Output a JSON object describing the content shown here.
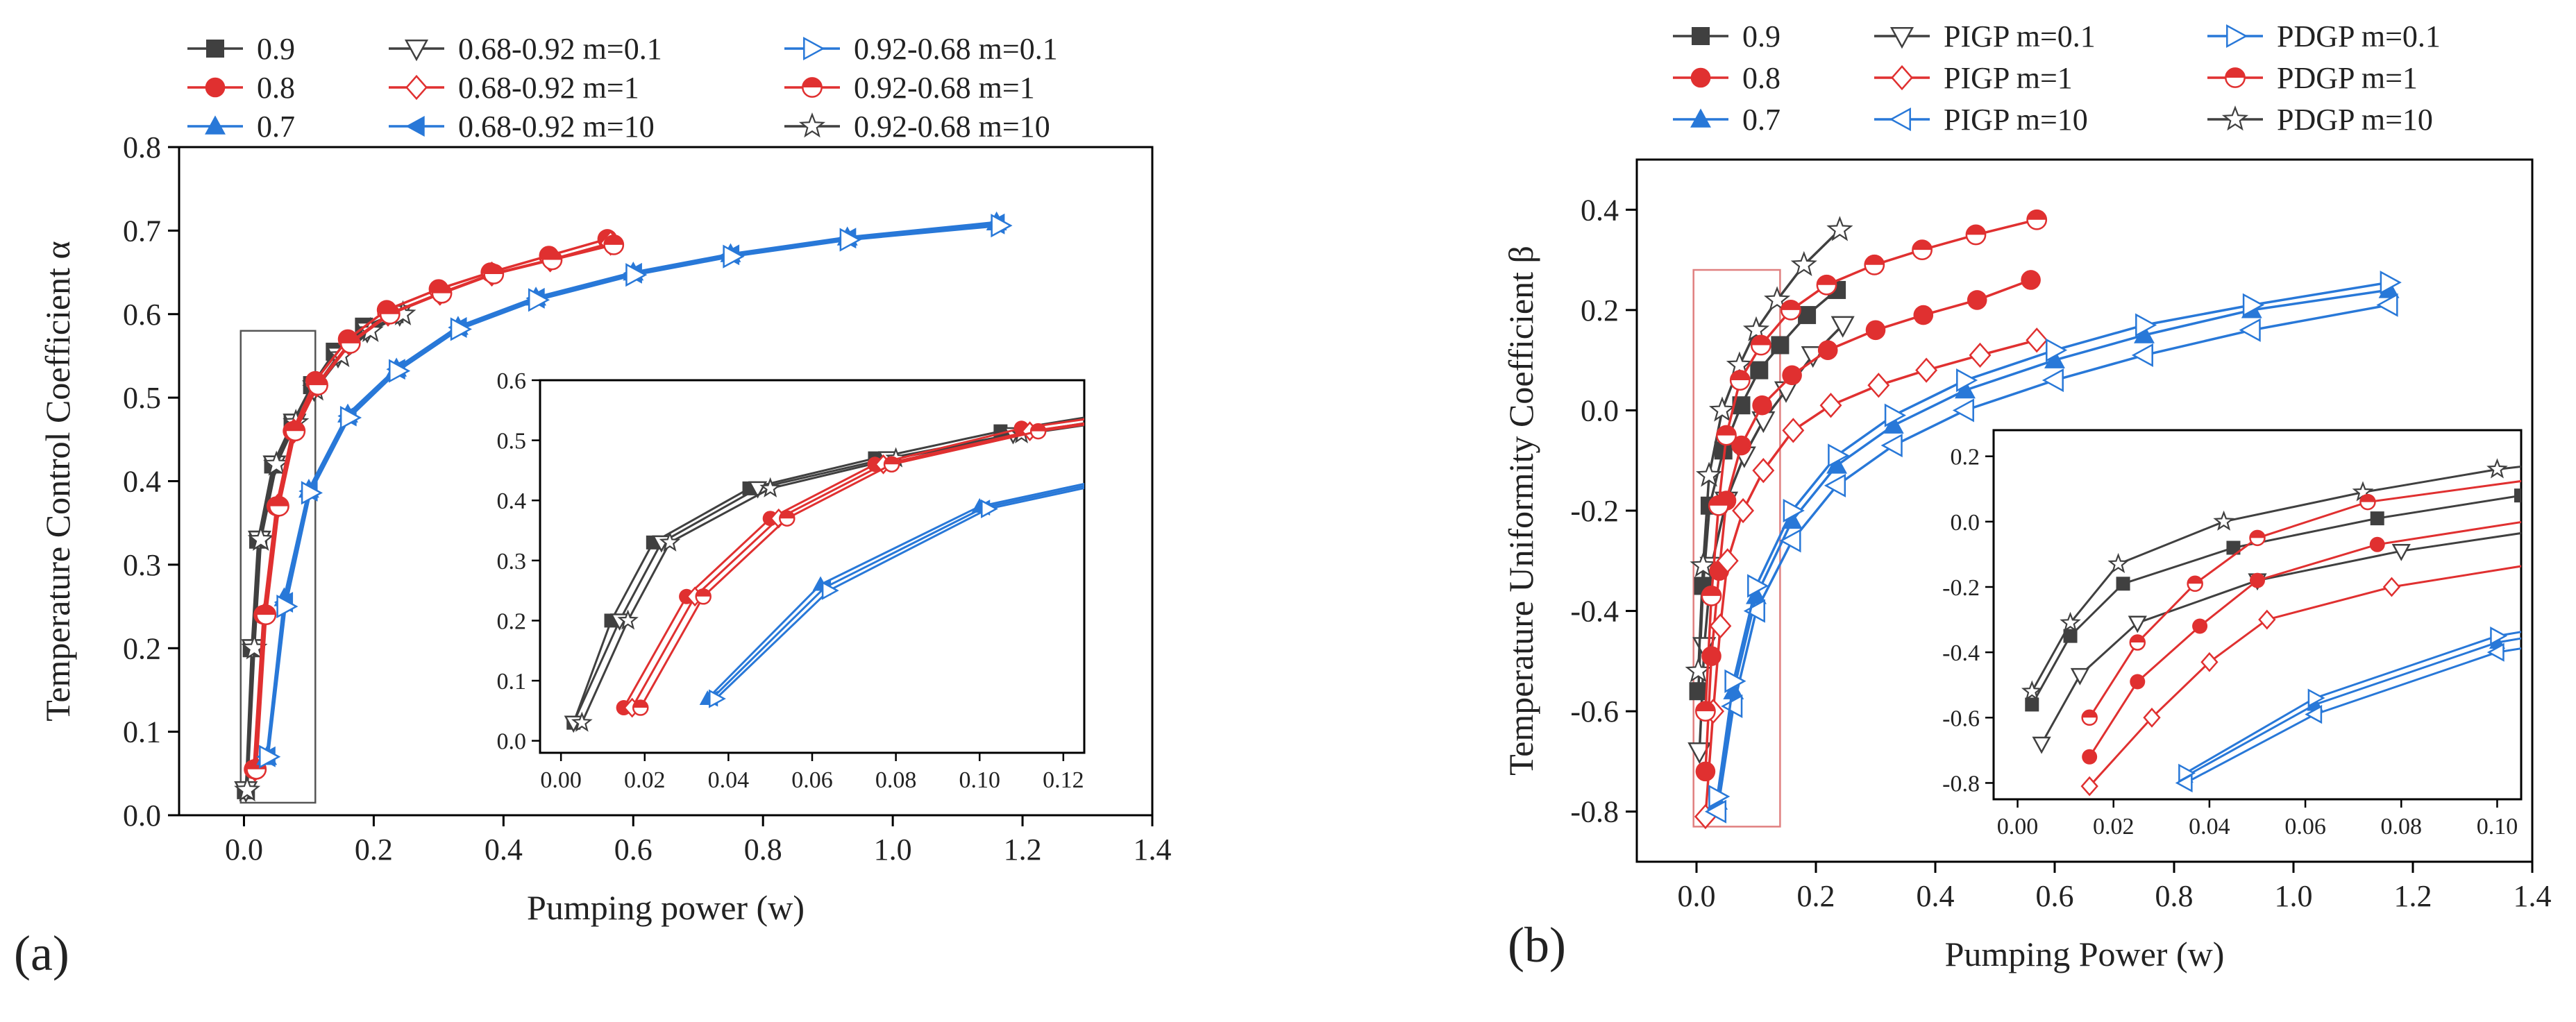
{
  "chart_data": [
    {
      "type": "line",
      "panel": "(a)",
      "xlabel": "Pumping power (w)",
      "ylabel": "Temperature Control Coefficient α",
      "xlim": [
        -0.1,
        1.4
      ],
      "ylim": [
        0.0,
        0.8
      ],
      "xticks": [
        "0.0",
        "0.2",
        "0.4",
        "0.6",
        "0.8",
        "1.0",
        "1.2",
        "1.4"
      ],
      "yticks": [
        "0.0",
        "0.1",
        "0.2",
        "0.3",
        "0.4",
        "0.5",
        "0.6",
        "0.7",
        "0.8"
      ],
      "zoom_box": {
        "x": [
          -0.005,
          0.11
        ],
        "y": [
          0.015,
          0.58
        ]
      },
      "legend": [
        {
          "label": "0.9",
          "color": "#404040",
          "marker": "square-filled"
        },
        {
          "label": "0.8",
          "color": "#e03030",
          "marker": "circle-filled"
        },
        {
          "label": "0.7",
          "color": "#2878d8",
          "marker": "triangle-up-filled"
        },
        {
          "label": "0.68-0.92 m=0.1",
          "color": "#404040",
          "marker": "triangle-down-open"
        },
        {
          "label": "0.68-0.92 m=1",
          "color": "#e03030",
          "marker": "diamond-open"
        },
        {
          "label": "0.68-0.92 m=10",
          "color": "#2878d8",
          "marker": "triangle-left-filled"
        },
        {
          "label": "0.92-0.68 m=0.1",
          "color": "#2878d8",
          "marker": "triangle-right-open"
        },
        {
          "label": "0.92-0.68 m=1",
          "color": "#e03030",
          "marker": "circle-half"
        },
        {
          "label": "0.92-0.68 m=10",
          "color": "#404040",
          "marker": "star-open"
        }
      ],
      "series": [
        {
          "name": "0.9",
          "color": "#404040",
          "marker": "square-filled",
          "x": [
            0.003,
            0.012,
            0.022,
            0.045,
            0.075,
            0.105,
            0.14,
            0.185,
            0.232
          ],
          "y": [
            0.03,
            0.2,
            0.33,
            0.42,
            0.47,
            0.515,
            0.555,
            0.585,
            0.6
          ]
        },
        {
          "name": "0.68-0.92 m=0.1",
          "color": "#404040",
          "marker": "triangle-down-open",
          "x": [
            0.003,
            0.014,
            0.024,
            0.047,
            0.078,
            0.108,
            0.145,
            0.19,
            0.24
          ],
          "y": [
            0.03,
            0.2,
            0.33,
            0.42,
            0.47,
            0.51,
            0.55,
            0.58,
            0.6
          ]
        },
        {
          "name": "0.92-0.68 m=10",
          "color": "#404040",
          "marker": "star-open",
          "x": [
            0.005,
            0.016,
            0.026,
            0.05,
            0.08,
            0.11,
            0.15,
            0.195,
            0.245
          ],
          "y": [
            0.03,
            0.2,
            0.33,
            0.42,
            0.47,
            0.51,
            0.55,
            0.58,
            0.6
          ]
        },
        {
          "name": "0.8",
          "color": "#e03030",
          "marker": "circle-filled",
          "x": [
            0.015,
            0.03,
            0.05,
            0.075,
            0.11,
            0.16,
            0.22,
            0.3,
            0.38,
            0.47,
            0.56
          ],
          "y": [
            0.055,
            0.24,
            0.37,
            0.46,
            0.52,
            0.57,
            0.605,
            0.63,
            0.65,
            0.67,
            0.69
          ]
        },
        {
          "name": "0.68-0.92 m=1",
          "color": "#e03030",
          "marker": "diamond-open",
          "x": [
            0.017,
            0.032,
            0.052,
            0.077,
            0.112,
            0.162,
            0.222,
            0.302,
            0.382,
            0.472,
            0.565
          ],
          "y": [
            0.055,
            0.24,
            0.37,
            0.46,
            0.515,
            0.565,
            0.6,
            0.625,
            0.648,
            0.665,
            0.685
          ]
        },
        {
          "name": "0.92-0.68 m=1",
          "color": "#e03030",
          "marker": "circle-half",
          "x": [
            0.019,
            0.034,
            0.054,
            0.079,
            0.114,
            0.164,
            0.225,
            0.305,
            0.385,
            0.475,
            0.57
          ],
          "y": [
            0.055,
            0.24,
            0.37,
            0.46,
            0.515,
            0.565,
            0.6,
            0.625,
            0.648,
            0.665,
            0.683
          ]
        },
        {
          "name": "0.7",
          "color": "#2878d8",
          "marker": "triangle-up-filled",
          "x": [
            0.035,
            0.062,
            0.1,
            0.16,
            0.235,
            0.33,
            0.45,
            0.6,
            0.75,
            0.93,
            1.16
          ],
          "y": [
            0.07,
            0.26,
            0.39,
            0.48,
            0.535,
            0.585,
            0.62,
            0.65,
            0.672,
            0.692,
            0.71
          ]
        },
        {
          "name": "0.68-0.92 m=10",
          "color": "#2878d8",
          "marker": "triangle-left-filled",
          "x": [
            0.036,
            0.063,
            0.101,
            0.161,
            0.236,
            0.331,
            0.451,
            0.601,
            0.751,
            0.931,
            1.16
          ],
          "y": [
            0.07,
            0.255,
            0.388,
            0.478,
            0.534,
            0.584,
            0.619,
            0.649,
            0.671,
            0.691,
            0.708
          ]
        },
        {
          "name": "0.92-0.68 m=0.1",
          "color": "#2878d8",
          "marker": "triangle-right-open",
          "x": [
            0.037,
            0.064,
            0.102,
            0.162,
            0.237,
            0.332,
            0.452,
            0.602,
            0.752,
            0.932,
            1.165
          ],
          "y": [
            0.07,
            0.25,
            0.386,
            0.476,
            0.532,
            0.582,
            0.617,
            0.647,
            0.669,
            0.689,
            0.706
          ]
        }
      ],
      "inset": {
        "xlim": [
          -0.005,
          0.125
        ],
        "ylim": [
          -0.02,
          0.6
        ],
        "xticks": [
          "0.00",
          "0.02",
          "0.04",
          "0.06",
          "0.08",
          "0.10",
          "0.12"
        ],
        "yticks": [
          "0.0",
          "0.1",
          "0.2",
          "0.3",
          "0.4",
          "0.5",
          "0.6"
        ]
      }
    },
    {
      "type": "line",
      "panel": "(b)",
      "xlabel": "Pumping Power (w)",
      "ylabel": "Temperature Uniformity Coefficient β",
      "xlim": [
        -0.1,
        1.4
      ],
      "ylim": [
        -0.9,
        0.5
      ],
      "xticks": [
        "0.0",
        "0.2",
        "0.4",
        "0.6",
        "0.8",
        "1.0",
        "1.2",
        "1.4"
      ],
      "yticks": [
        "-0.8",
        "-0.6",
        "-0.4",
        "-0.2",
        "0.0",
        "0.2",
        "0.4"
      ],
      "zoom_box": {
        "x": [
          -0.005,
          0.14
        ],
        "y": [
          -0.83,
          0.28
        ]
      },
      "legend": [
        {
          "label": "0.9",
          "color": "#404040",
          "marker": "square-filled"
        },
        {
          "label": "0.8",
          "color": "#e03030",
          "marker": "circle-filled"
        },
        {
          "label": "0.7",
          "color": "#2878d8",
          "marker": "triangle-up-filled"
        },
        {
          "label": "PIGP m=0.1",
          "color": "#404040",
          "marker": "triangle-down-open"
        },
        {
          "label": "PIGP  m=1",
          "color": "#e03030",
          "marker": "diamond-open"
        },
        {
          "label": "PIGP  m=10",
          "color": "#2878d8",
          "marker": "triangle-left-open"
        },
        {
          "label": "PDGP  m=0.1",
          "color": "#2878d8",
          "marker": "triangle-right-open"
        },
        {
          "label": "PDGP  m=1",
          "color": "#e03030",
          "marker": "circle-half"
        },
        {
          "label": "PDGP m=10",
          "color": "#404040",
          "marker": "star-open"
        }
      ],
      "series": [
        {
          "name": "0.9",
          "color": "#404040",
          "marker": "square-filled",
          "x": [
            0.003,
            0.011,
            0.022,
            0.045,
            0.075,
            0.105,
            0.14,
            0.185,
            0.235
          ],
          "y": [
            -0.56,
            -0.35,
            -0.19,
            -0.08,
            0.01,
            0.08,
            0.13,
            0.19,
            0.24
          ]
        },
        {
          "name": "PIGP m=0.1",
          "color": "#404040",
          "marker": "triangle-down-open",
          "x": [
            0.005,
            0.013,
            0.025,
            0.05,
            0.08,
            0.112,
            0.15,
            0.195,
            0.245
          ],
          "y": [
            -0.68,
            -0.47,
            -0.31,
            -0.18,
            -0.09,
            -0.02,
            0.04,
            0.11,
            0.17
          ]
        },
        {
          "name": "PDGP m=10",
          "color": "#404040",
          "marker": "star-open",
          "x": [
            0.003,
            0.011,
            0.021,
            0.043,
            0.072,
            0.1,
            0.135,
            0.18,
            0.24
          ],
          "y": [
            -0.52,
            -0.31,
            -0.13,
            0.0,
            0.09,
            0.16,
            0.22,
            0.29,
            0.36
          ]
        },
        {
          "name": "0.8",
          "color": "#e03030",
          "marker": "circle-filled",
          "x": [
            0.015,
            0.025,
            0.038,
            0.05,
            0.075,
            0.11,
            0.16,
            0.22,
            0.3,
            0.38,
            0.47,
            0.56
          ],
          "y": [
            -0.72,
            -0.49,
            -0.32,
            -0.18,
            -0.07,
            0.01,
            0.07,
            0.12,
            0.16,
            0.19,
            0.22,
            0.26
          ]
        },
        {
          "name": "PIGP  m=1",
          "color": "#e03030",
          "marker": "diamond-open",
          "x": [
            0.015,
            0.028,
            0.04,
            0.052,
            0.078,
            0.112,
            0.162,
            0.225,
            0.305,
            0.385,
            0.475,
            0.57
          ],
          "y": [
            -0.81,
            -0.6,
            -0.43,
            -0.3,
            -0.2,
            -0.12,
            -0.04,
            0.01,
            0.05,
            0.08,
            0.11,
            0.14
          ]
        },
        {
          "name": "PDGP  m=1",
          "color": "#e03030",
          "marker": "circle-half",
          "x": [
            0.015,
            0.025,
            0.037,
            0.05,
            0.073,
            0.108,
            0.158,
            0.218,
            0.298,
            0.378,
            0.468,
            0.57
          ],
          "y": [
            -0.6,
            -0.37,
            -0.19,
            -0.05,
            0.06,
            0.13,
            0.2,
            0.25,
            0.29,
            0.32,
            0.35,
            0.38
          ]
        },
        {
          "name": "0.7",
          "color": "#2878d8",
          "marker": "triangle-up-filled",
          "x": [
            0.035,
            0.062,
            0.1,
            0.16,
            0.235,
            0.33,
            0.45,
            0.6,
            0.75,
            0.93,
            1.16
          ],
          "y": [
            -0.78,
            -0.56,
            -0.37,
            -0.22,
            -0.11,
            -0.03,
            0.04,
            0.1,
            0.15,
            0.2,
            0.24
          ]
        },
        {
          "name": "PIGP  m=10",
          "color": "#2878d8",
          "marker": "triangle-left-open",
          "x": [
            0.035,
            0.062,
            0.1,
            0.16,
            0.235,
            0.33,
            0.45,
            0.6,
            0.75,
            0.93,
            1.16
          ],
          "y": [
            -0.8,
            -0.59,
            -0.4,
            -0.26,
            -0.15,
            -0.07,
            0.0,
            0.06,
            0.11,
            0.16,
            0.21
          ]
        },
        {
          "name": "PDGP  m=0.1",
          "color": "#2878d8",
          "marker": "triangle-right-open",
          "x": [
            0.035,
            0.062,
            0.1,
            0.16,
            0.235,
            0.33,
            0.45,
            0.6,
            0.75,
            0.93,
            1.16
          ],
          "y": [
            -0.77,
            -0.54,
            -0.35,
            -0.2,
            -0.09,
            -0.01,
            0.06,
            0.12,
            0.17,
            0.21,
            0.255
          ]
        }
      ],
      "inset": {
        "xlim": [
          -0.005,
          0.105
        ],
        "ylim": [
          -0.85,
          0.28
        ],
        "xticks": [
          "0.00",
          "0.02",
          "0.04",
          "0.06",
          "0.08",
          "0.10"
        ],
        "yticks": [
          "-0.8",
          "-0.6",
          "-0.4",
          "-0.2",
          "0.0",
          "0.2"
        ]
      }
    }
  ]
}
